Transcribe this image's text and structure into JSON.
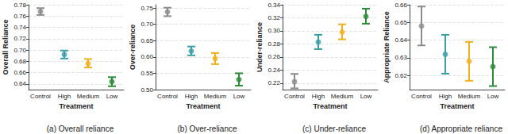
{
  "chart_data": [
    {
      "type": "scatter",
      "title": "(a) Overall reliance",
      "x_label": "Treatment",
      "y_label": "Overall Reliance",
      "categories": [
        "Control",
        "High",
        "Medium",
        "Low"
      ],
      "values": [
        0.768,
        0.692,
        0.676,
        0.644
      ],
      "errors": [
        [
          0.762,
          0.774
        ],
        [
          0.685,
          0.699
        ],
        [
          0.669,
          0.684
        ],
        [
          0.636,
          0.652
        ]
      ],
      "colors": [
        "#8c8c8c",
        "#3a9ea5",
        "#f2b01e",
        "#2e8b3a"
      ],
      "ylim": [
        0.63,
        0.78
      ],
      "yticks": [
        0.64,
        0.66,
        0.68,
        {
          "value": 0.7,
          "label": "0.70"
        },
        0.72,
        0.74,
        0.76,
        0.78
      ],
      "grid": true,
      "marker": "circle"
    },
    {
      "type": "scatter",
      "title": "(b) Over-reliance",
      "x_label": "Treatment",
      "y_label": "Over-reliance",
      "categories": [
        "Control",
        "High",
        "Medium",
        "Low"
      ],
      "values": [
        0.738,
        0.618,
        0.595,
        0.531
      ],
      "errors": [
        [
          0.725,
          0.751
        ],
        [
          0.605,
          0.632
        ],
        [
          0.578,
          0.612
        ],
        [
          0.512,
          0.55
        ]
      ],
      "colors": [
        "#8c8c8c",
        "#3a9ea5",
        "#f2b01e",
        "#2e8b3a"
      ],
      "ylim": [
        0.5,
        0.76
      ],
      "yticks": [
        {
          "value": 0.5,
          "label": "0.50"
        },
        0.55,
        {
          "value": 0.6,
          "label": "0.60"
        },
        0.65,
        {
          "value": 0.7,
          "label": "0.70"
        },
        0.75
      ],
      "grid": true,
      "marker": "circle"
    },
    {
      "type": "scatter",
      "title": "(c) Under-reliance",
      "x_label": "Treatment",
      "y_label": "Under-reliance",
      "categories": [
        "Control",
        "High",
        "Medium",
        "Low"
      ],
      "values": [
        0.222,
        0.283,
        0.298,
        0.322
      ],
      "errors": [
        [
          0.212,
          0.234
        ],
        [
          0.272,
          0.294
        ],
        [
          0.287,
          0.31
        ],
        [
          0.311,
          0.334
        ]
      ],
      "colors": [
        "#8c8c8c",
        "#3a9ea5",
        "#f2b01e",
        "#2e8b3a"
      ],
      "ylim": [
        0.21,
        0.34
      ],
      "yticks": [
        0.22,
        0.24,
        0.26,
        0.28,
        {
          "value": 0.3,
          "label": "0.30"
        },
        0.32,
        0.34
      ],
      "grid": true,
      "marker": "circle"
    },
    {
      "type": "scatter",
      "title": "(d) Appropriate reliance",
      "x_label": "Treatment",
      "y_label": "Appropriate Reliance",
      "categories": [
        "Control",
        "High",
        "Medium",
        "Low"
      ],
      "values": [
        0.648,
        0.632,
        0.628,
        0.625
      ],
      "errors": [
        [
          0.637,
          0.659
        ],
        [
          0.621,
          0.643
        ],
        [
          0.617,
          0.639
        ],
        [
          0.614,
          0.636
        ]
      ],
      "colors": [
        "#8c8c8c",
        "#3a9ea5",
        "#f2b01e",
        "#2e8b3a"
      ],
      "ylim": [
        0.612,
        0.66
      ],
      "yticks": [
        0.62,
        0.63,
        0.64,
        0.65,
        0.66
      ],
      "grid": true,
      "marker": "circle"
    }
  ]
}
